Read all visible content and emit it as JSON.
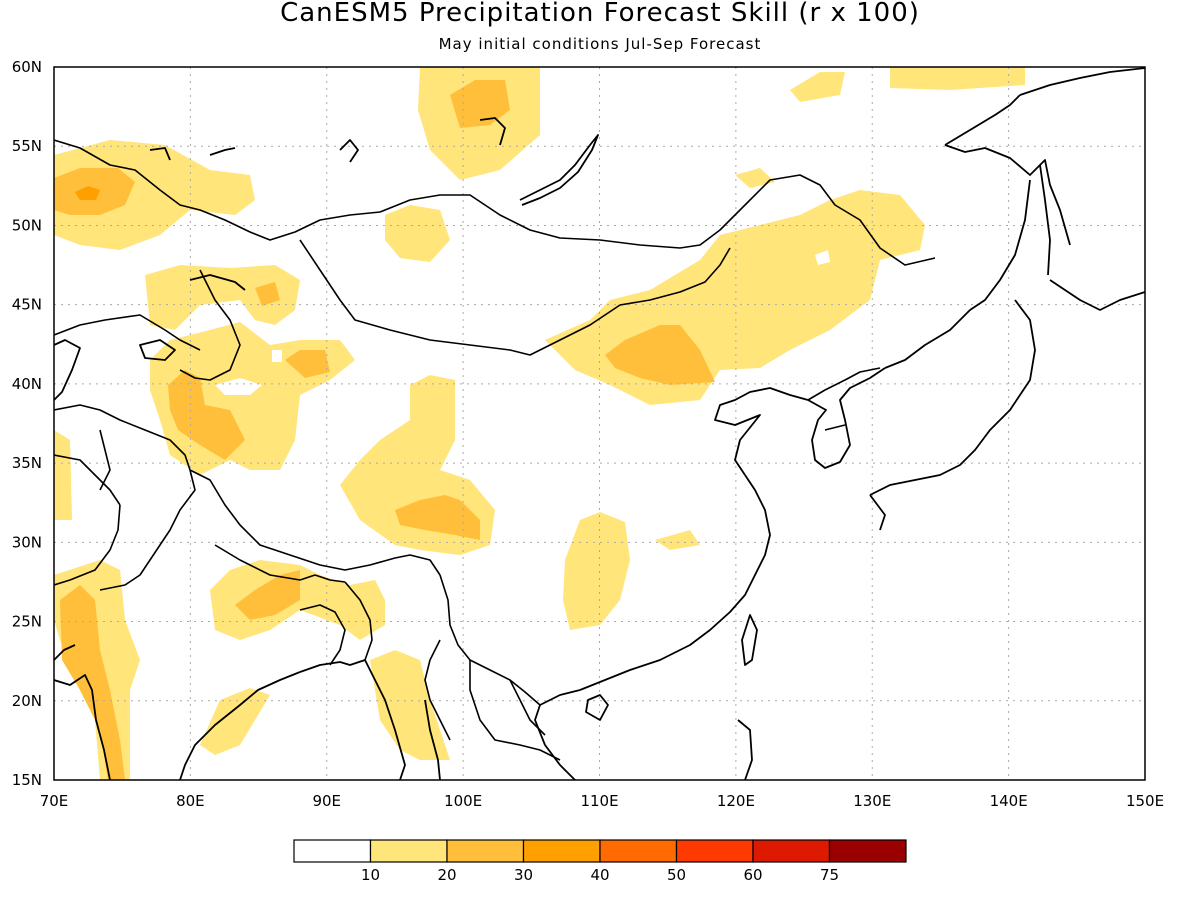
{
  "title": "CanESM5 Precipitation Forecast Skill (r x 100)",
  "subtitle": "May initial conditions  Jul-Sep Forecast",
  "map": {
    "lon_range": [
      70,
      150
    ],
    "lat_range": [
      15,
      60
    ],
    "lon_ticks": [
      "70E",
      "80E",
      "90E",
      "100E",
      "110E",
      "120E",
      "130E",
      "140E",
      "150E"
    ],
    "lat_ticks": [
      "15N",
      "20N",
      "25N",
      "30N",
      "35N",
      "40N",
      "45N",
      "50N",
      "55N",
      "60N"
    ],
    "gridlines": true,
    "coastlines": true,
    "country_borders": true
  },
  "colorbar": {
    "colors": [
      "#ffffff",
      "#ffe57a",
      "#ffbf3b",
      "#ffa000",
      "#ff6b00",
      "#ff3a00",
      "#dd1a00",
      "#9a0000"
    ],
    "labels": [
      "10",
      "20",
      "30",
      "40",
      "50",
      "60",
      "75"
    ]
  },
  "skill_regions": [
    {
      "level": 1,
      "name": "north-siberia"
    },
    {
      "level": 2,
      "name": "north-siberia-core"
    },
    {
      "level": 1,
      "name": "northeast-corner"
    },
    {
      "level": 1,
      "name": "kazakhstan-north"
    },
    {
      "level": 2,
      "name": "kazakhstan-north-core"
    },
    {
      "level": 3,
      "name": "kazakhstan-north-peak"
    },
    {
      "level": 1,
      "name": "mongolia-west"
    },
    {
      "level": 1,
      "name": "xinjiang"
    },
    {
      "level": 2,
      "name": "xinjiang-core"
    },
    {
      "level": 1,
      "name": "central-asia"
    },
    {
      "level": 2,
      "name": "central-asia-core"
    },
    {
      "level": 1,
      "name": "north-china-mongolia"
    },
    {
      "level": 2,
      "name": "north-china-core"
    },
    {
      "level": 1,
      "name": "northeast-china"
    },
    {
      "level": 1,
      "name": "tibet"
    },
    {
      "level": 2,
      "name": "tibet-core"
    },
    {
      "level": 1,
      "name": "south-china"
    },
    {
      "level": 1,
      "name": "himalaya-south"
    },
    {
      "level": 2,
      "name": "himalaya-south-core"
    },
    {
      "level": 1,
      "name": "india-west"
    },
    {
      "level": 2,
      "name": "india-west-core"
    },
    {
      "level": 1,
      "name": "myanmar"
    },
    {
      "level": 1,
      "name": "india-east"
    }
  ]
}
